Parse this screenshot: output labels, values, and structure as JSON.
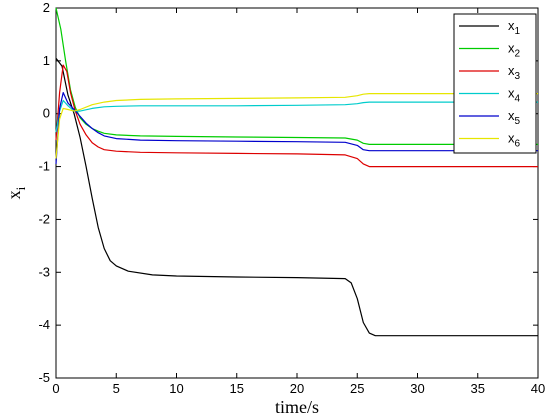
{
  "chart_data": {
    "type": "line",
    "title": "",
    "xlabel": "time/s",
    "ylabel": "x",
    "ylabel_subscript": "i",
    "xlim": [
      0,
      40
    ],
    "ylim": [
      -5,
      2
    ],
    "xticks": [
      0,
      5,
      10,
      15,
      20,
      25,
      30,
      35,
      40
    ],
    "yticks": [
      -5,
      -4,
      -3,
      -2,
      -1,
      0,
      1,
      2
    ],
    "grid": false,
    "legend_position": "top-right",
    "series": [
      {
        "name": "x",
        "subscript": "1",
        "color": "#000000",
        "x": [
          0,
          0.5,
          1,
          1.5,
          2,
          2.5,
          3,
          3.5,
          4,
          4.5,
          5,
          6,
          8,
          10,
          15,
          20,
          24,
          24.5,
          25,
          25.5,
          26,
          26.5,
          28,
          32,
          36,
          40
        ],
        "y": [
          1.05,
          0.9,
          0.35,
          0.0,
          -0.45,
          -1.0,
          -1.6,
          -2.15,
          -2.55,
          -2.78,
          -2.88,
          -2.98,
          -3.05,
          -3.07,
          -3.09,
          -3.1,
          -3.12,
          -3.2,
          -3.5,
          -3.95,
          -4.15,
          -4.2,
          -4.2,
          -4.2,
          -4.2,
          -4.2
        ]
      },
      {
        "name": "x",
        "subscript": "2",
        "color": "#00cc00",
        "x": [
          0,
          0.4,
          0.8,
          1.2,
          1.6,
          2,
          2.5,
          3,
          3.5,
          4,
          5,
          7,
          10,
          15,
          20,
          24,
          25,
          25.5,
          26,
          28,
          32,
          36,
          40
        ],
        "y": [
          2.0,
          1.6,
          1.0,
          0.45,
          0.12,
          -0.08,
          -0.2,
          -0.28,
          -0.33,
          -0.37,
          -0.4,
          -0.42,
          -0.43,
          -0.44,
          -0.45,
          -0.46,
          -0.5,
          -0.56,
          -0.58,
          -0.58,
          -0.58,
          -0.58,
          -0.58
        ]
      },
      {
        "name": "x",
        "subscript": "3",
        "color": "#dd0000",
        "x": [
          0,
          0.3,
          0.6,
          0.9,
          1.2,
          1.6,
          2,
          2.5,
          3,
          3.5,
          4,
          5,
          7,
          10,
          15,
          20,
          24,
          25,
          25.5,
          26,
          28,
          32,
          36,
          40
        ],
        "y": [
          -0.5,
          0.4,
          0.92,
          0.8,
          0.4,
          0.05,
          -0.2,
          -0.4,
          -0.55,
          -0.63,
          -0.68,
          -0.71,
          -0.73,
          -0.74,
          -0.75,
          -0.76,
          -0.78,
          -0.85,
          -0.95,
          -1.0,
          -1.0,
          -1.0,
          -1.0,
          -1.0
        ]
      },
      {
        "name": "x",
        "subscript": "4",
        "color": "#00cccc",
        "x": [
          0,
          0.3,
          0.6,
          1,
          1.5,
          2,
          3,
          4,
          5,
          7,
          10,
          15,
          20,
          24,
          25,
          25.5,
          26,
          28,
          32,
          36,
          40
        ],
        "y": [
          -0.35,
          0.05,
          0.25,
          0.15,
          0.05,
          0.05,
          0.1,
          0.13,
          0.14,
          0.15,
          0.15,
          0.15,
          0.16,
          0.17,
          0.19,
          0.21,
          0.22,
          0.22,
          0.22,
          0.22,
          0.22
        ]
      },
      {
        "name": "x",
        "subscript": "5",
        "color": "#0000cc",
        "x": [
          0,
          0.3,
          0.6,
          1,
          1.5,
          2,
          2.5,
          3,
          3.5,
          4,
          5,
          7,
          10,
          15,
          20,
          24,
          25,
          25.5,
          26,
          28,
          32,
          36,
          40
        ],
        "y": [
          -0.95,
          0.1,
          0.4,
          0.2,
          0.08,
          -0.05,
          -0.18,
          -0.28,
          -0.36,
          -0.42,
          -0.47,
          -0.5,
          -0.51,
          -0.52,
          -0.53,
          -0.54,
          -0.6,
          -0.68,
          -0.7,
          -0.7,
          -0.7,
          -0.7,
          -0.7
        ]
      },
      {
        "name": "x",
        "subscript": "6",
        "color": "#e6e600",
        "x": [
          0,
          0.3,
          0.6,
          1,
          1.5,
          2,
          3,
          4,
          5,
          7,
          10,
          15,
          20,
          24,
          25,
          25.5,
          26,
          28,
          32,
          36,
          40
        ],
        "y": [
          -0.85,
          -0.1,
          0.1,
          0.08,
          0.05,
          0.08,
          0.17,
          0.22,
          0.25,
          0.27,
          0.28,
          0.29,
          0.3,
          0.31,
          0.34,
          0.37,
          0.38,
          0.38,
          0.38,
          0.38,
          0.38
        ]
      }
    ]
  }
}
